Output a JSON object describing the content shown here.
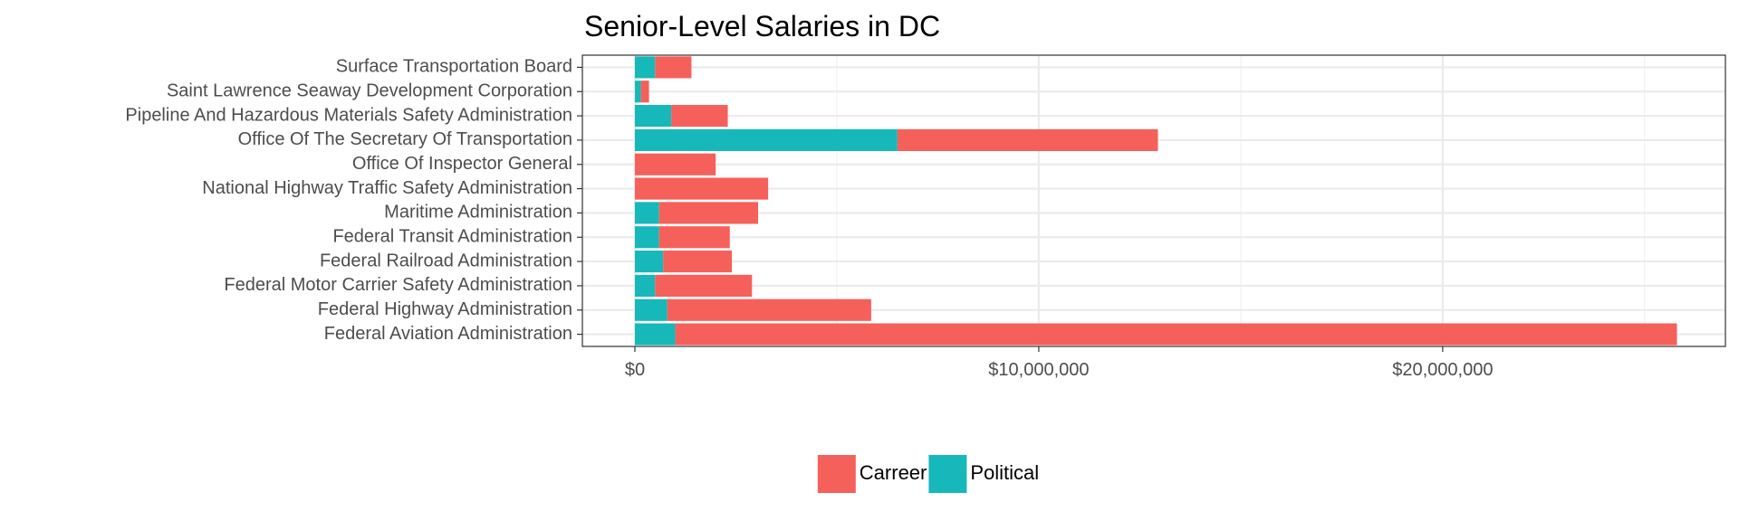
{
  "chart_data": {
    "type": "bar",
    "orientation": "horizontal",
    "stacked": true,
    "title": "Senior-Level Salaries in DC",
    "xlabel": "",
    "ylabel": "",
    "categories": [
      "Federal Aviation Administration",
      "Federal Highway Administration",
      "Federal Motor Carrier Safety Administration",
      "Federal Railroad Administration",
      "Federal Transit Administration",
      "Maritime Administration",
      "National Highway Traffic Safety Administration",
      "Office Of Inspector General",
      "Office Of The Secretary Of Transportation",
      "Pipeline And Hazardous Materials Safety Administration",
      "Saint Lawrence Seaway Development Corporation",
      "Surface Transportation Board"
    ],
    "series": [
      {
        "name": "Political",
        "color": "#17b8b9",
        "values": [
          1000000,
          800000,
          500000,
          700000,
          600000,
          600000,
          0,
          0,
          6500000,
          900000,
          150000,
          500000
        ]
      },
      {
        "name": "Carreer",
        "color": "#f5605b",
        "values": [
          24800000,
          5050000,
          2400000,
          1700000,
          1750000,
          2450000,
          3300000,
          2000000,
          6450000,
          1400000,
          200000,
          900000
        ]
      }
    ],
    "xlim": [
      -1300000,
      27000000
    ],
    "x_ticks": [
      {
        "value": 0,
        "label": "$0"
      },
      {
        "value": 10000000,
        "label": "$10,000,000"
      },
      {
        "value": 20000000,
        "label": "$20,000,000"
      }
    ],
    "grid": true,
    "legend": {
      "position": "bottom",
      "entries": [
        "Carreer",
        "Political"
      ]
    }
  }
}
